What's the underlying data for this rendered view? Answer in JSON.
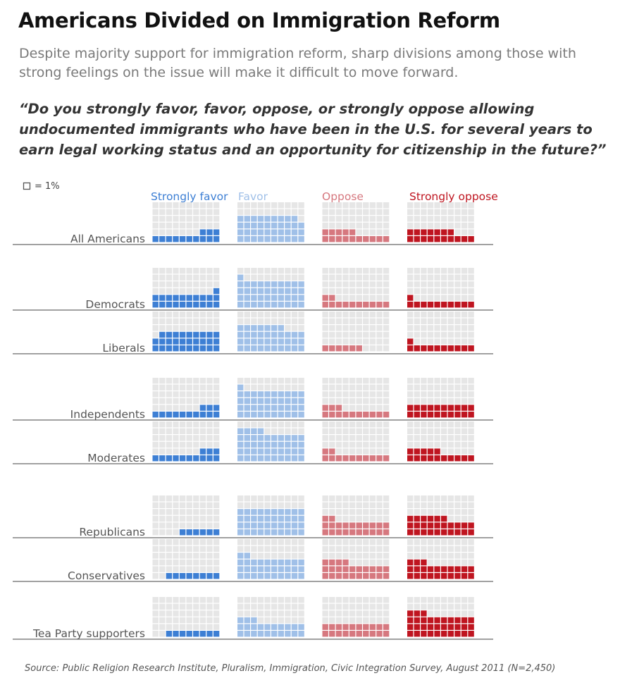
{
  "title": "Americans Divided on Immigration Reform",
  "subtitle": "Despite majority support for immigration reform, sharp divisions among those with strong feelings on the issue will make it difficult to move forward.",
  "question": "“Do you strongly favor, favor, oppose, or strongly oppose allowing undocumented immigrants who have been in the U.S. for several years to earn legal working status and an opportunity for citizenship in the future?”",
  "key_label": "= 1%",
  "source": "Source: Public Religion Research Institute, Pluralism, Immigration, Civic Integration Survey, August 2011 (N=2,450)",
  "colors": {
    "strongly_favor": "#3d7fd4",
    "favor": "#a0c0e8",
    "oppose": "#d6787f",
    "strongly_oppose": "#bf1520",
    "empty": "#e6e6e6",
    "label": "#555555"
  },
  "chart_data": {
    "type": "waffle",
    "unit": "1 square = 1%",
    "categories": [
      "Strongly favor",
      "Favor",
      "Oppose",
      "Strongly oppose"
    ],
    "groups": [
      {
        "label": "All Americans",
        "values": [
          13,
          39,
          15,
          17
        ]
      },
      {
        "label": "Democrats",
        "values": [
          21,
          41,
          12,
          11
        ]
      },
      {
        "label": "Liberals",
        "values": [
          29,
          37,
          6,
          11
        ]
      },
      {
        "label": "Independents",
        "values": [
          13,
          41,
          13,
          20
        ]
      },
      {
        "label": "Moderates",
        "values": [
          13,
          44,
          12,
          15
        ]
      },
      {
        "label": "Republicans",
        "values": [
          6,
          40,
          22,
          26
        ]
      },
      {
        "label": "Conservatives",
        "values": [
          8,
          32,
          24,
          23
        ]
      },
      {
        "label": "Tea Party supporters",
        "values": [
          8,
          23,
          20,
          33
        ]
      }
    ]
  }
}
